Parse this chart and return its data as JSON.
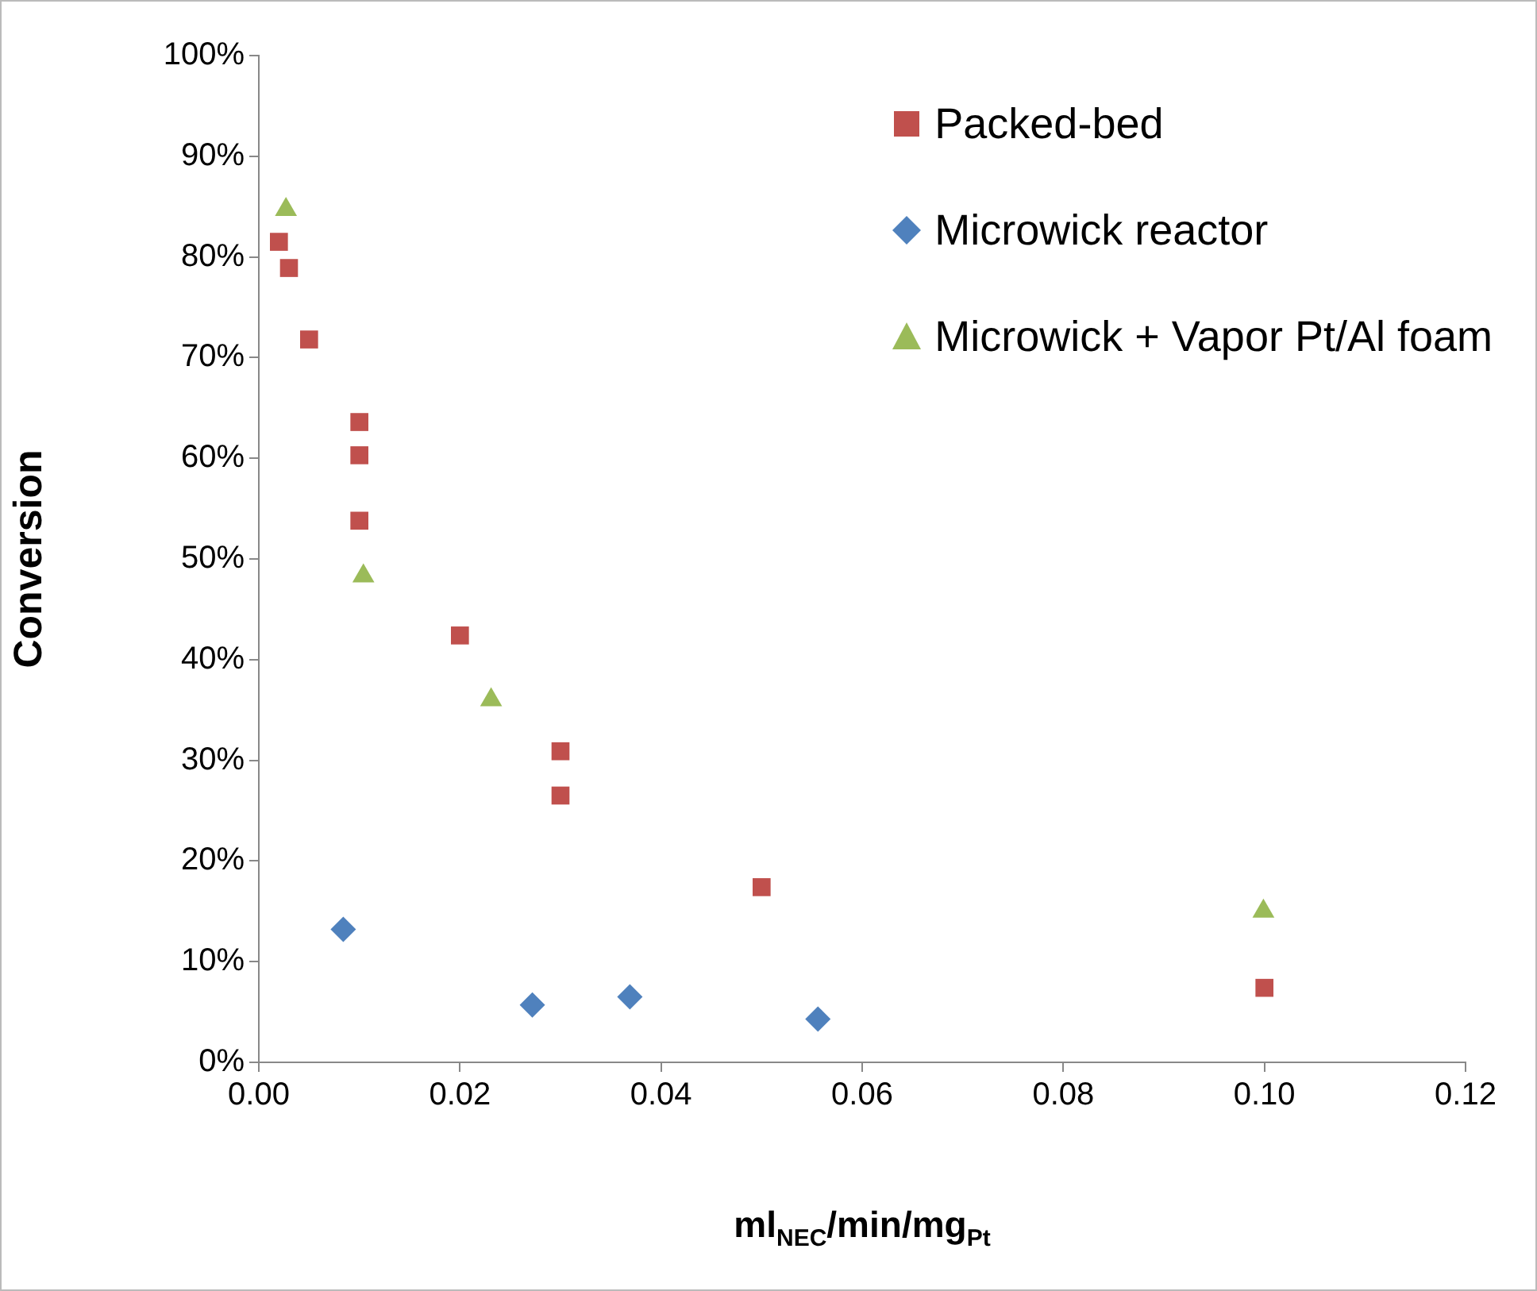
{
  "chart_data": {
    "type": "scatter",
    "xlabel": "ml$_{NEC}$/min/mg$_{Pt}$",
    "ylabel": "Conversion",
    "xlim": [
      0,
      0.12
    ],
    "xticks": [
      {
        "value": 0,
        "label": "0.00"
      },
      {
        "value": 0.02,
        "label": "0.02"
      },
      {
        "value": 0.04,
        "label": "0.04"
      },
      {
        "value": 0.06,
        "label": "0.06"
      },
      {
        "value": 0.08,
        "label": "0.08"
      },
      {
        "value": 0.1,
        "label": "0.10"
      },
      {
        "value": 0.12,
        "label": "0.12"
      }
    ],
    "ylim": [
      0,
      100
    ],
    "yticks": [
      {
        "value": 0,
        "label": "0%"
      },
      {
        "value": 10,
        "label": "10%"
      },
      {
        "value": 20,
        "label": "20%"
      },
      {
        "value": 30,
        "label": "30%"
      },
      {
        "value": 40,
        "label": "40%"
      },
      {
        "value": 50,
        "label": "50%"
      },
      {
        "value": 60,
        "label": "60%"
      },
      {
        "value": 70,
        "label": "70%"
      },
      {
        "value": 80,
        "label": "80%"
      },
      {
        "value": 90,
        "label": "90%"
      },
      {
        "value": 100,
        "label": "100%"
      }
    ],
    "grid": false,
    "legend": "top right",
    "series": [
      {
        "name": "Packed-bed",
        "color": "#c0504d",
        "marker": "square",
        "x": [
          0.002,
          0.003,
          0.005,
          0.01,
          0.01,
          0.01,
          0.02,
          0.03,
          0.03,
          0.05,
          0.1
        ],
        "values": [
          81.5,
          78.9,
          71.8,
          63.6,
          60.3,
          53.8,
          42.4,
          30.9,
          26.5,
          17.4,
          7.4
        ]
      },
      {
        "name": "Microwick reactor",
        "color": "#4f81bd",
        "marker": "diamond",
        "x": [
          0.0084,
          0.0272,
          0.0369,
          0.0556
        ],
        "values": [
          13.2,
          5.7,
          6.5,
          4.3
        ]
      },
      {
        "name": "Microwick + Vapor Pt/Al foam",
        "color": "#9bbb59",
        "marker": "triangle",
        "x": [
          0.0027,
          0.0104,
          0.0231,
          0.0999
        ],
        "values": [
          84.7,
          48.3,
          36.0,
          15.0
        ]
      }
    ]
  }
}
